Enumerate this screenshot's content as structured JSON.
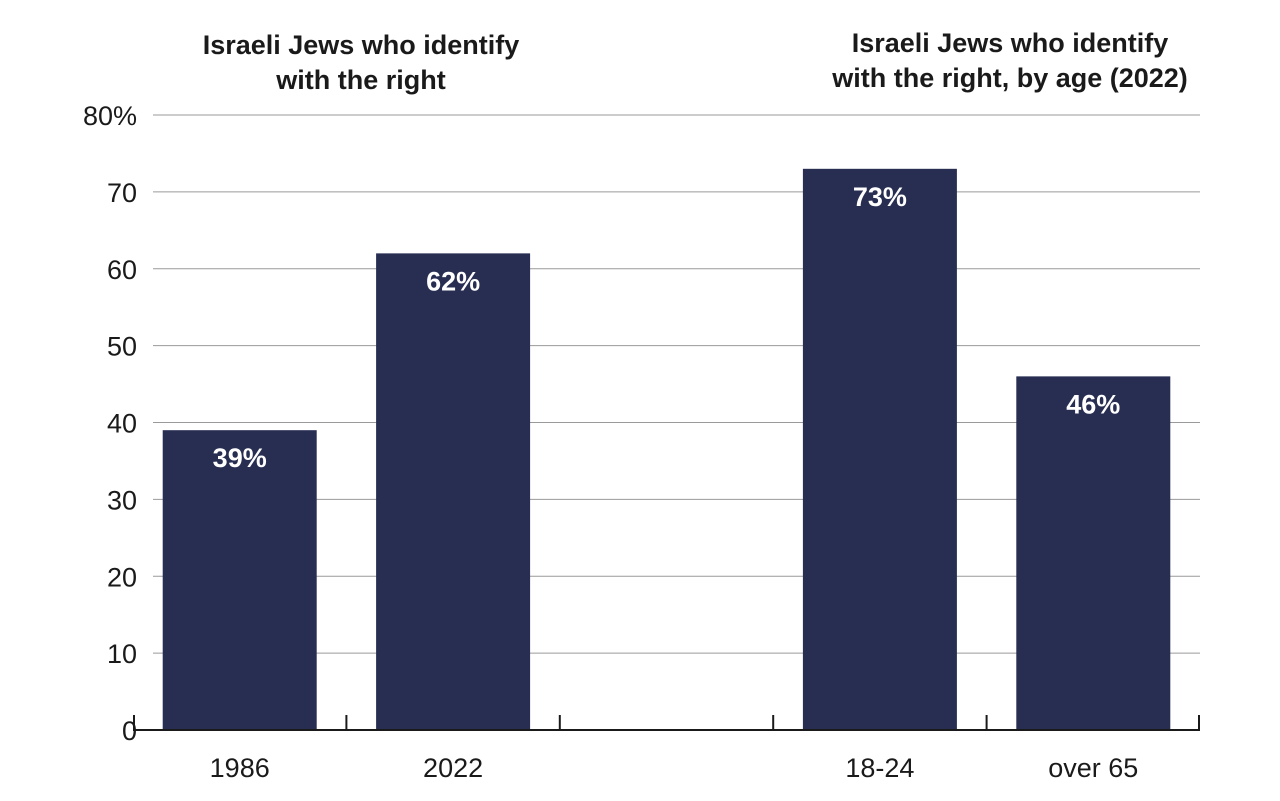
{
  "colors": {
    "bar": "#272e52",
    "label": "#ffffff",
    "grid": "#9a9a9a",
    "text": "#1a1a1a"
  },
  "chart_data": {
    "type": "bar",
    "ylim": [
      0,
      80
    ],
    "y_ticks": [
      "0",
      "10",
      "20",
      "30",
      "40",
      "50",
      "60",
      "70",
      "80%"
    ],
    "grid": true,
    "panels": [
      {
        "title_lines": [
          "Israeli Jews who identify",
          "with the right"
        ],
        "categories": [
          "1986",
          "2022"
        ],
        "values": [
          39,
          62
        ],
        "value_labels": [
          "39%",
          "62%"
        ]
      },
      {
        "title_lines": [
          "Israeli Jews who identify",
          "with the right, by age (2022)"
        ],
        "categories": [
          "18-24",
          "over 65"
        ],
        "values": [
          73,
          46
        ],
        "value_labels": [
          "73%",
          "46%"
        ]
      }
    ]
  }
}
